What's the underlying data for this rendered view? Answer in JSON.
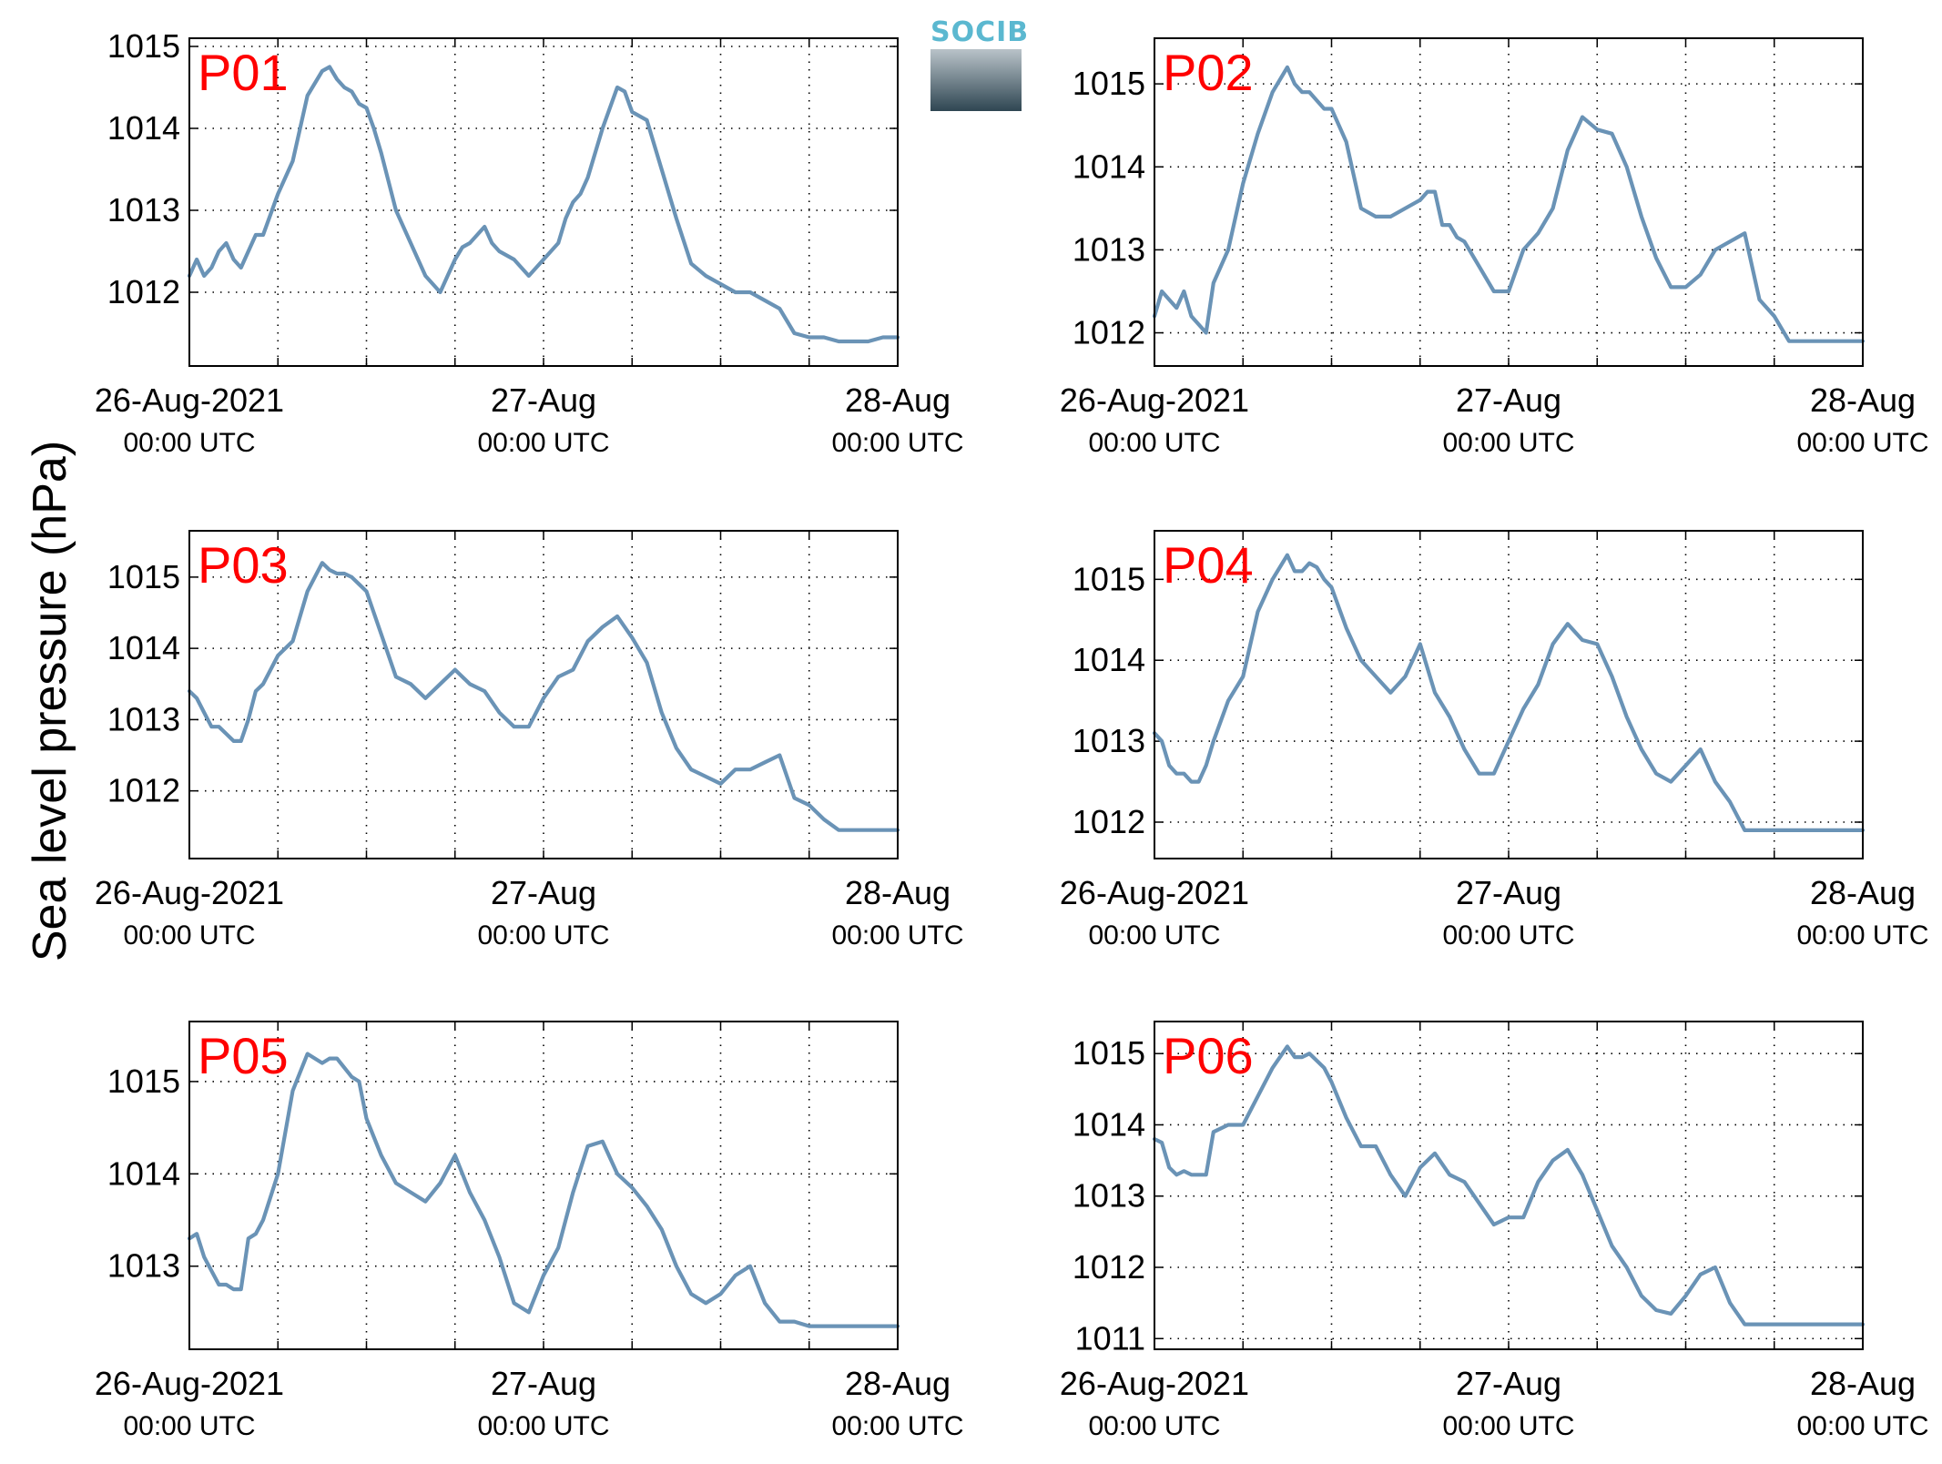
{
  "figure": {
    "ylabel": "Sea level pressure (hPa)",
    "logo_text": "SOCIB"
  },
  "chart_data": [
    {
      "type": "line",
      "title": "P01",
      "x_tick_labels": [
        [
          "26-Aug-2021",
          "00:00 UTC"
        ],
        [
          "27-Aug",
          "00:00 UTC"
        ],
        [
          "28-Aug",
          "00:00 UTC"
        ]
      ],
      "xlim": [
        0,
        48
      ],
      "ylim": [
        1011.1,
        1015.1
      ],
      "yticks": [
        1012,
        1013,
        1014,
        1015
      ],
      "grid": true,
      "color": "#6a93b6",
      "series": [
        {
          "x": [
            0,
            0.5,
            1,
            1.5,
            2,
            2.5,
            3,
            3.5,
            4,
            4.5,
            5,
            6,
            7,
            8,
            9,
            9.5,
            10,
            10.5,
            11,
            11.5,
            12,
            12.5,
            13,
            14,
            15,
            15.5,
            16,
            16.5,
            17,
            17.5,
            18,
            18.5,
            19,
            19.5,
            20,
            20.5,
            21,
            22,
            23,
            24,
            25,
            25.5,
            26,
            26.5,
            27,
            28,
            29,
            29.5,
            30,
            31,
            32,
            33,
            34,
            35,
            36,
            37,
            38,
            39,
            40,
            41,
            42,
            43,
            44,
            45,
            46,
            47,
            48
          ],
          "y": [
            1012.2,
            1012.4,
            1012.2,
            1012.3,
            1012.5,
            1012.6,
            1012.4,
            1012.3,
            1012.5,
            1012.7,
            1012.7,
            1013.2,
            1013.6,
            1014.4,
            1014.7,
            1014.75,
            1014.6,
            1014.5,
            1014.45,
            1014.3,
            1014.25,
            1014.0,
            1013.7,
            1013.0,
            1012.6,
            1012.4,
            1012.2,
            1012.1,
            1012.0,
            1012.2,
            1012.4,
            1012.55,
            1012.6,
            1012.7,
            1012.8,
            1012.6,
            1012.5,
            1012.4,
            1012.2,
            1012.4,
            1012.6,
            1012.9,
            1013.1,
            1013.2,
            1013.4,
            1014.0,
            1014.5,
            1014.45,
            1014.2,
            1014.1,
            1013.5,
            1012.9,
            1012.35,
            1012.2,
            1012.1,
            1012.0,
            1012.0,
            1011.9,
            1011.8,
            1011.5,
            1011.45,
            1011.45,
            1011.4,
            1011.4,
            1011.4,
            1011.45,
            1011.45
          ]
        }
      ]
    },
    {
      "type": "line",
      "title": "P02",
      "x_tick_labels": [
        [
          "26-Aug-2021",
          "00:00 UTC"
        ],
        [
          "27-Aug",
          "00:00 UTC"
        ],
        [
          "28-Aug",
          "00:00 UTC"
        ]
      ],
      "xlim": [
        0,
        48
      ],
      "ylim": [
        1011.6,
        1015.55
      ],
      "yticks": [
        1012,
        1013,
        1014,
        1015
      ],
      "grid": true,
      "color": "#6a93b6",
      "series": [
        {
          "x": [
            0,
            0.5,
            1,
            1.5,
            2,
            2.5,
            3,
            3.5,
            4,
            5,
            6,
            7,
            8,
            9,
            9.5,
            10,
            10.5,
            11,
            11.5,
            12,
            13,
            14,
            15,
            16,
            17,
            18,
            18.5,
            19,
            19.5,
            20,
            20.5,
            21,
            22,
            23,
            24,
            25,
            26,
            27,
            28,
            29,
            30,
            31,
            32,
            33,
            34,
            35,
            36,
            37,
            38,
            39,
            40,
            41,
            42,
            43,
            44,
            45,
            46,
            47,
            48
          ],
          "y": [
            1012.2,
            1012.5,
            1012.4,
            1012.3,
            1012.5,
            1012.2,
            1012.1,
            1012.0,
            1012.6,
            1013.0,
            1013.8,
            1014.4,
            1014.9,
            1015.2,
            1015.0,
            1014.9,
            1014.9,
            1014.8,
            1014.7,
            1014.7,
            1014.3,
            1013.5,
            1013.4,
            1013.4,
            1013.5,
            1013.6,
            1013.7,
            1013.7,
            1013.3,
            1013.3,
            1013.15,
            1013.1,
            1012.8,
            1012.5,
            1012.5,
            1013.0,
            1013.2,
            1013.5,
            1014.2,
            1014.6,
            1014.45,
            1014.4,
            1014.0,
            1013.4,
            1012.9,
            1012.55,
            1012.55,
            1012.7,
            1013.0,
            1013.1,
            1013.2,
            1012.4,
            1012.2,
            1011.9,
            1011.9,
            1011.9,
            1011.9,
            1011.9,
            1011.9
          ]
        }
      ]
    },
    {
      "type": "line",
      "title": "P03",
      "x_tick_labels": [
        [
          "26-Aug-2021",
          "00:00 UTC"
        ],
        [
          "27-Aug",
          "00:00 UTC"
        ],
        [
          "28-Aug",
          "00:00 UTC"
        ]
      ],
      "xlim": [
        0,
        48
      ],
      "ylim": [
        1011.05,
        1015.65
      ],
      "yticks": [
        1012,
        1013,
        1014,
        1015
      ],
      "grid": true,
      "color": "#6a93b6",
      "series": [
        {
          "x": [
            0,
            0.5,
            1,
            1.5,
            2,
            2.5,
            3,
            3.5,
            4,
            4.5,
            5,
            6,
            7,
            8,
            9,
            9.5,
            10,
            10.5,
            11,
            11.5,
            12,
            12.5,
            13,
            14,
            15,
            16,
            17,
            18,
            19,
            20,
            21,
            22,
            23,
            24,
            25,
            26,
            27,
            28,
            29,
            30,
            31,
            32,
            33,
            34,
            35,
            36,
            37,
            38,
            39,
            40,
            41,
            42,
            43,
            44,
            45,
            46,
            47,
            48
          ],
          "y": [
            1013.4,
            1013.3,
            1013.1,
            1012.9,
            1012.9,
            1012.8,
            1012.7,
            1012.7,
            1013.0,
            1013.4,
            1013.5,
            1013.9,
            1014.1,
            1014.8,
            1015.2,
            1015.1,
            1015.05,
            1015.05,
            1015.0,
            1014.9,
            1014.8,
            1014.5,
            1014.2,
            1013.6,
            1013.5,
            1013.3,
            1013.5,
            1013.7,
            1013.5,
            1013.4,
            1013.1,
            1012.9,
            1012.9,
            1013.3,
            1013.6,
            1013.7,
            1014.1,
            1014.3,
            1014.45,
            1014.15,
            1013.8,
            1013.1,
            1012.6,
            1012.3,
            1012.2,
            1012.1,
            1012.3,
            1012.3,
            1012.4,
            1012.5,
            1011.9,
            1011.8,
            1011.6,
            1011.45,
            1011.45,
            1011.45,
            1011.45,
            1011.45
          ]
        }
      ]
    },
    {
      "type": "line",
      "title": "P04",
      "x_tick_labels": [
        [
          "26-Aug-2021",
          "00:00 UTC"
        ],
        [
          "27-Aug",
          "00:00 UTC"
        ],
        [
          "28-Aug",
          "00:00 UTC"
        ]
      ],
      "xlim": [
        0,
        48
      ],
      "ylim": [
        1011.55,
        1015.6
      ],
      "yticks": [
        1012,
        1013,
        1014,
        1015
      ],
      "grid": true,
      "color": "#6a93b6",
      "series": [
        {
          "x": [
            0,
            0.5,
            1,
            1.5,
            2,
            2.5,
            3,
            3.5,
            4,
            5,
            6,
            7,
            8,
            9,
            9.5,
            10,
            10.5,
            11,
            11.5,
            12,
            13,
            14,
            15,
            16,
            17,
            18,
            19,
            20,
            21,
            22,
            23,
            24,
            25,
            26,
            27,
            28,
            29,
            30,
            31,
            32,
            33,
            34,
            35,
            36,
            37,
            38,
            39,
            40,
            41,
            42,
            43,
            44,
            45,
            46,
            47,
            48
          ],
          "y": [
            1013.1,
            1013.0,
            1012.7,
            1012.6,
            1012.6,
            1012.5,
            1012.5,
            1012.7,
            1013.0,
            1013.5,
            1013.8,
            1014.6,
            1015.0,
            1015.3,
            1015.1,
            1015.1,
            1015.2,
            1015.15,
            1015.0,
            1014.9,
            1014.4,
            1014.0,
            1013.8,
            1013.6,
            1013.8,
            1014.2,
            1013.6,
            1013.3,
            1012.9,
            1012.6,
            1012.6,
            1013.0,
            1013.4,
            1013.7,
            1014.2,
            1014.45,
            1014.25,
            1014.2,
            1013.8,
            1013.3,
            1012.9,
            1012.6,
            1012.5,
            1012.7,
            1012.9,
            1012.5,
            1012.25,
            1011.9,
            1011.9,
            1011.9,
            1011.9,
            1011.9,
            1011.9,
            1011.9,
            1011.9,
            1011.9
          ]
        }
      ]
    },
    {
      "type": "line",
      "title": "P05",
      "x_tick_labels": [
        [
          "26-Aug-2021",
          "00:00 UTC"
        ],
        [
          "27-Aug",
          "00:00 UTC"
        ],
        [
          "28-Aug",
          "00:00 UTC"
        ]
      ],
      "xlim": [
        0,
        48
      ],
      "ylim": [
        1012.1,
        1015.65
      ],
      "yticks": [
        1013,
        1014,
        1015
      ],
      "grid": true,
      "color": "#6a93b6",
      "series": [
        {
          "x": [
            0,
            0.5,
            1,
            1.5,
            2,
            2.5,
            3,
            3.5,
            4,
            4.5,
            5,
            6,
            7,
            8,
            9,
            9.5,
            10,
            10.5,
            11,
            11.5,
            12,
            12.5,
            13,
            14,
            15,
            16,
            17,
            18,
            19,
            20,
            21,
            22,
            23,
            24,
            25,
            26,
            27,
            28,
            29,
            30,
            31,
            32,
            33,
            34,
            35,
            36,
            37,
            38,
            39,
            40,
            41,
            42,
            43,
            44,
            45,
            46,
            47,
            48
          ],
          "y": [
            1013.3,
            1013.35,
            1013.1,
            1012.95,
            1012.8,
            1012.8,
            1012.75,
            1012.75,
            1013.3,
            1013.35,
            1013.5,
            1014.0,
            1014.9,
            1015.3,
            1015.2,
            1015.25,
            1015.25,
            1015.15,
            1015.05,
            1015.0,
            1014.6,
            1014.4,
            1014.2,
            1013.9,
            1013.8,
            1013.7,
            1013.9,
            1014.2,
            1013.8,
            1013.5,
            1013.1,
            1012.6,
            1012.5,
            1012.9,
            1013.2,
            1013.8,
            1014.3,
            1014.35,
            1014.0,
            1013.85,
            1013.65,
            1013.4,
            1013.0,
            1012.7,
            1012.6,
            1012.7,
            1012.9,
            1013.0,
            1012.6,
            1012.4,
            1012.4,
            1012.35,
            1012.35,
            1012.35,
            1012.35,
            1012.35,
            1012.35,
            1012.35
          ]
        }
      ]
    },
    {
      "type": "line",
      "title": "P06",
      "x_tick_labels": [
        [
          "26-Aug-2021",
          "00:00 UTC"
        ],
        [
          "27-Aug",
          "00:00 UTC"
        ],
        [
          "28-Aug",
          "00:00 UTC"
        ]
      ],
      "xlim": [
        0,
        48
      ],
      "ylim": [
        1010.85,
        1015.45
      ],
      "yticks": [
        1011,
        1012,
        1013,
        1014,
        1015
      ],
      "grid": true,
      "color": "#6a93b6",
      "series": [
        {
          "x": [
            0,
            0.5,
            1,
            1.5,
            2,
            2.5,
            3,
            3.5,
            4,
            5,
            6,
            7,
            8,
            9,
            9.5,
            10,
            10.5,
            11,
            11.5,
            12,
            13,
            14,
            15,
            16,
            17,
            18,
            19,
            20,
            21,
            22,
            23,
            24,
            25,
            26,
            27,
            28,
            29,
            30,
            31,
            32,
            33,
            34,
            35,
            36,
            37,
            38,
            39,
            40,
            41,
            42,
            43,
            44,
            45,
            46,
            47,
            48
          ],
          "y": [
            1013.8,
            1013.75,
            1013.4,
            1013.3,
            1013.35,
            1013.3,
            1013.3,
            1013.3,
            1013.9,
            1014.0,
            1014.0,
            1014.4,
            1014.8,
            1015.1,
            1014.95,
            1014.95,
            1015.0,
            1014.9,
            1014.8,
            1014.6,
            1014.1,
            1013.7,
            1013.7,
            1013.3,
            1013.0,
            1013.4,
            1013.6,
            1013.3,
            1013.2,
            1012.9,
            1012.6,
            1012.7,
            1012.7,
            1013.2,
            1013.5,
            1013.65,
            1013.3,
            1012.8,
            1012.3,
            1012.0,
            1011.6,
            1011.4,
            1011.35,
            1011.6,
            1011.9,
            1012.0,
            1011.5,
            1011.2,
            1011.2,
            1011.2,
            1011.2,
            1011.2,
            1011.2,
            1011.2,
            1011.2,
            1011.2
          ]
        }
      ]
    }
  ]
}
